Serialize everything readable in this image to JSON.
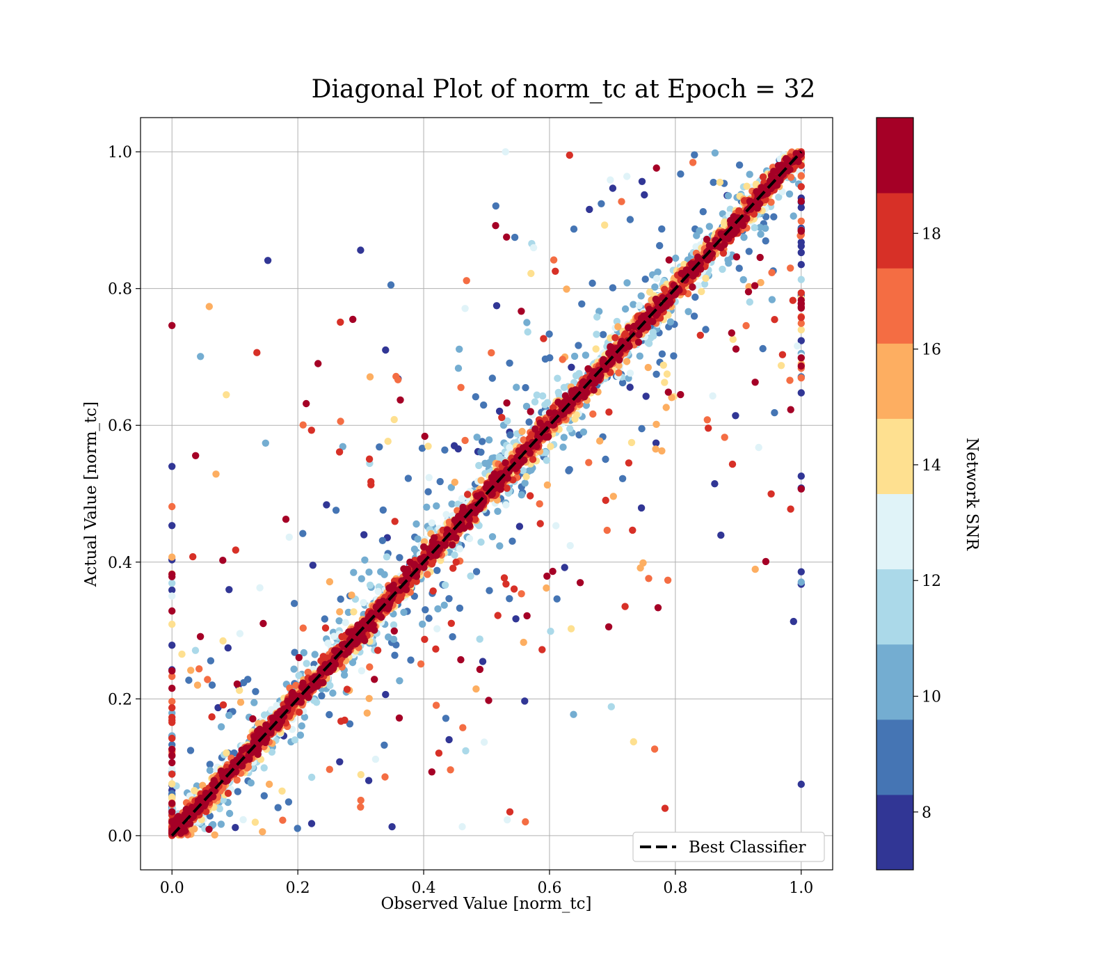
{
  "chart_data": {
    "type": "scatter",
    "title": "Diagonal Plot of norm_tc at Epoch = 32",
    "xlabel": "Observed Value [norm_tc]",
    "ylabel": "Actual Value [norm_tc]",
    "xlim": [
      -0.05,
      1.05
    ],
    "ylim": [
      -0.05,
      1.05
    ],
    "xticks": [
      "0.0",
      "0.2",
      "0.4",
      "0.6",
      "0.8",
      "1.0"
    ],
    "yticks": [
      "0.0",
      "0.2",
      "0.4",
      "0.6",
      "0.8",
      "1.0"
    ],
    "grid": true,
    "reference_line": {
      "label": "Best Classifier",
      "x": [
        0,
        1
      ],
      "y": [
        0,
        1
      ],
      "style": "dashed",
      "color": "#000000"
    },
    "legend": {
      "placement": "lower-right",
      "entries": [
        "Best Classifier"
      ]
    },
    "colorbar": {
      "label": "Network SNR",
      "range": [
        7,
        20
      ],
      "ticks": [
        "8",
        "10",
        "12",
        "14",
        "16",
        "18"
      ],
      "colors": [
        "#313695",
        "#4575b4",
        "#74add1",
        "#abd9e9",
        "#e0f3f8",
        "#fee090",
        "#fdae61",
        "#f46d43",
        "#d73027",
        "#a50026"
      ]
    },
    "points_description_free": true
  }
}
